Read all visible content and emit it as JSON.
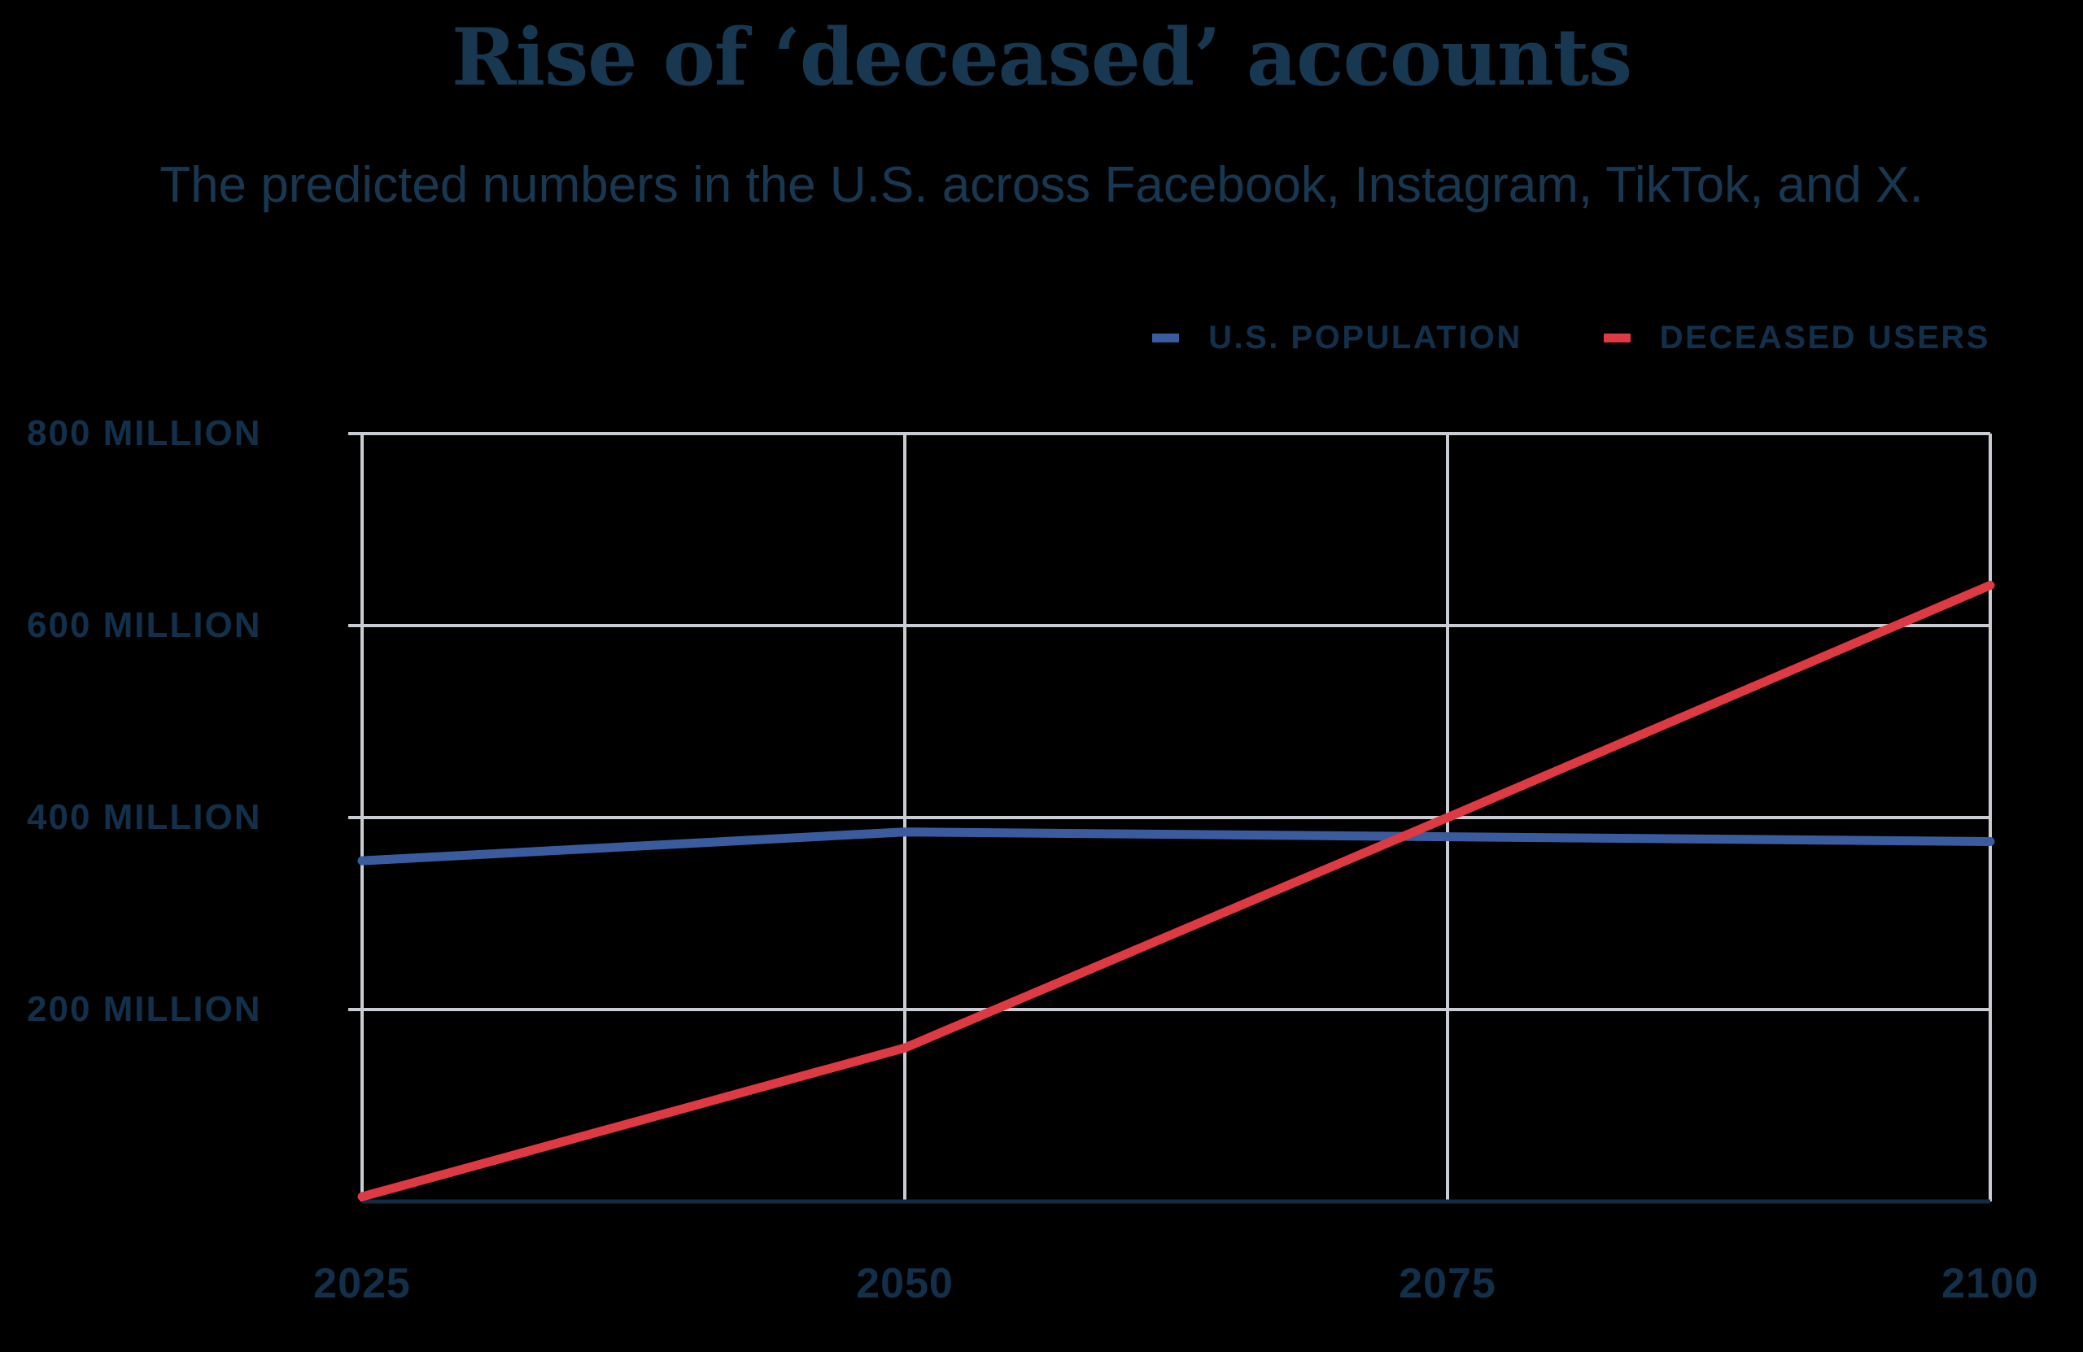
{
  "title": "Rise of ‘deceased’ accounts",
  "subtitle": "The predicted numbers in the U.S. across Facebook, Instagram, TikTok, and X.",
  "legend": {
    "items": [
      {
        "label": "U.S. POPULATION",
        "color": "#3a5c9e"
      },
      {
        "label": "DECEASED USERS",
        "color": "#dd3a43"
      }
    ]
  },
  "chart_data": {
    "type": "line",
    "x": [
      2025,
      2050,
      2075,
      2100
    ],
    "x_ticks": [
      "2025",
      "2050",
      "2075",
      "2100"
    ],
    "series": [
      {
        "name": "U.S. POPULATION",
        "color": "#3a5c9e",
        "values": [
          355,
          385,
          380,
          375
        ]
      },
      {
        "name": "DECEASED USERS",
        "color": "#dd3a43",
        "values": [
          5,
          160,
          400,
          642
        ]
      }
    ],
    "y_ticks": [
      {
        "value": 800,
        "label": "800 MILLION"
      },
      {
        "value": 600,
        "label": "600 MILLION"
      },
      {
        "value": 400,
        "label": "400 MILLION"
      },
      {
        "value": 200,
        "label": "200 MILLION"
      }
    ],
    "xlim": [
      2025,
      2100
    ],
    "ylim": [
      0,
      800
    ],
    "unit": "million",
    "grid": true,
    "legend_position": "top-right",
    "colors": {
      "gridline": "#c9cdd3",
      "baseline": "#102c44",
      "text": "#12304a",
      "title": "#173850",
      "background": "#000000"
    }
  }
}
